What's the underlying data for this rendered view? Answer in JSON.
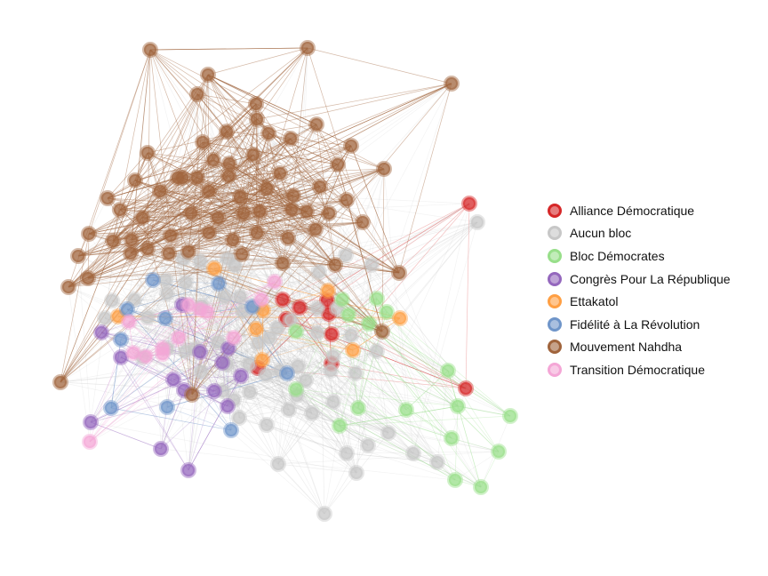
{
  "legend": {
    "items": [
      {
        "label": "Alliance Démocratique",
        "color": "#d62728"
      },
      {
        "label": "Aucun bloc",
        "color": "#c7c7c7"
      },
      {
        "label": "Bloc Démocrates",
        "color": "#98df8a"
      },
      {
        "label": "Congrès Pour La République",
        "color": "#9467bd"
      },
      {
        "label": "Ettakatol",
        "color": "#ff9f43"
      },
      {
        "label": "Fidélité à La Révolution",
        "color": "#6f95c9"
      },
      {
        "label": "Mouvement Nahdha",
        "color": "#a0643c"
      },
      {
        "label": "Transition Démocratique",
        "color": "#f4a6d6"
      }
    ]
  }
}
